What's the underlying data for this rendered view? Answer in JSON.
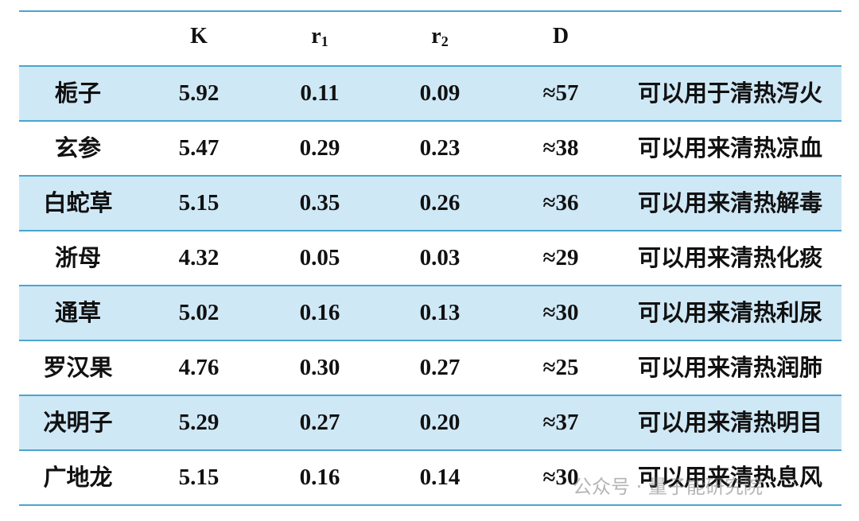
{
  "table": {
    "header": [
      {
        "label": "K"
      },
      {
        "label": "r",
        "sub": "1"
      },
      {
        "label": "r",
        "sub": "2"
      },
      {
        "label": "D"
      }
    ],
    "rows": [
      [
        "栀子",
        "5.92",
        "0.11",
        "0.09",
        "≈57",
        "可以用于清热泻火"
      ],
      [
        "玄参",
        "5.47",
        "0.29",
        "0.23",
        "≈38",
        "可以用来清热凉血"
      ],
      [
        "白蛇草",
        "5.15",
        "0.35",
        "0.26",
        "≈36",
        "可以用来清热解毒"
      ],
      [
        "浙母",
        "4.32",
        "0.05",
        "0.03",
        "≈29",
        "可以用来清热化痰"
      ],
      [
        "通草",
        "5.02",
        "0.16",
        "0.13",
        "≈30",
        "可以用来清热利尿"
      ],
      [
        "罗汉果",
        "4.76",
        "0.30",
        "0.27",
        "≈25",
        "可以用来清热润肺"
      ],
      [
        "决明子",
        "5.29",
        "0.27",
        "0.20",
        "≈37",
        "可以用来清热明目"
      ],
      [
        "广地龙",
        "5.15",
        "0.16",
        "0.14",
        "≈30",
        "可以用来清热息风"
      ]
    ]
  },
  "watermark": "公众号 · 量子能研究院"
}
